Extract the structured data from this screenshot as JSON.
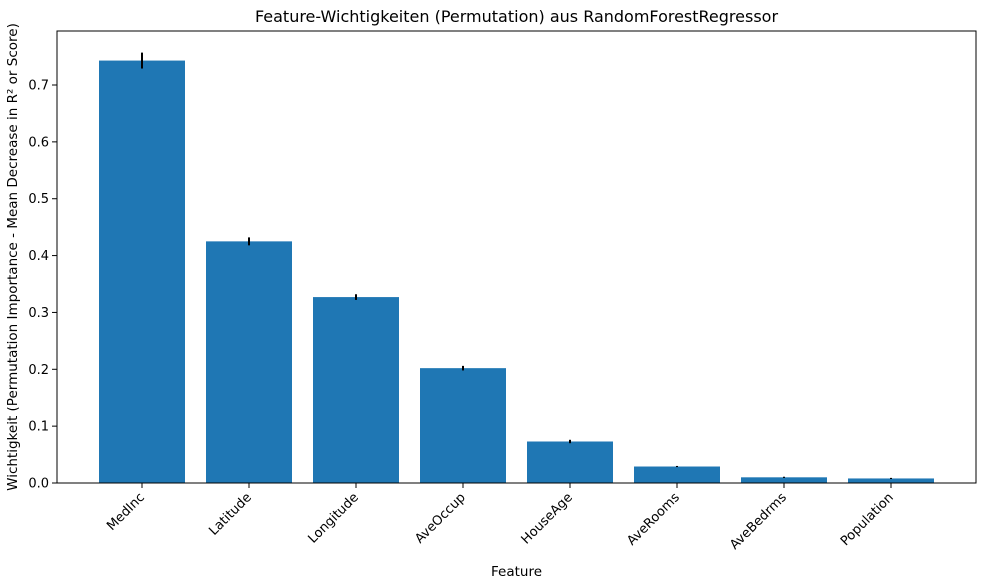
{
  "chart_data": {
    "type": "bar",
    "title": "Feature-Wichtigkeiten (Permutation) aus RandomForestRegressor",
    "xlabel": "Feature",
    "ylabel": "Wichtigkeit (Permutation Importance - Mean Decrease in R² or Score)",
    "categories": [
      "MedInc",
      "Latitude",
      "Longitude",
      "AveOccup",
      "HouseAge",
      "AveRooms",
      "AveBedrms",
      "Population"
    ],
    "values": [
      0.743,
      0.425,
      0.327,
      0.202,
      0.073,
      0.029,
      0.01,
      0.008
    ],
    "errors": [
      0.014,
      0.007,
      0.005,
      0.004,
      0.003,
      0.001,
      0.001,
      0.001
    ],
    "ylim": [
      0,
      0.795
    ],
    "yticks": [
      0.0,
      0.1,
      0.2,
      0.3,
      0.4,
      0.5,
      0.6,
      0.7
    ],
    "ytick_labels": [
      "0.0",
      "0.1",
      "0.2",
      "0.3",
      "0.4",
      "0.5",
      "0.6",
      "0.7"
    ],
    "bar_color": "#1f77b4",
    "error_color": "#000000",
    "grid": false,
    "legend": "none"
  }
}
